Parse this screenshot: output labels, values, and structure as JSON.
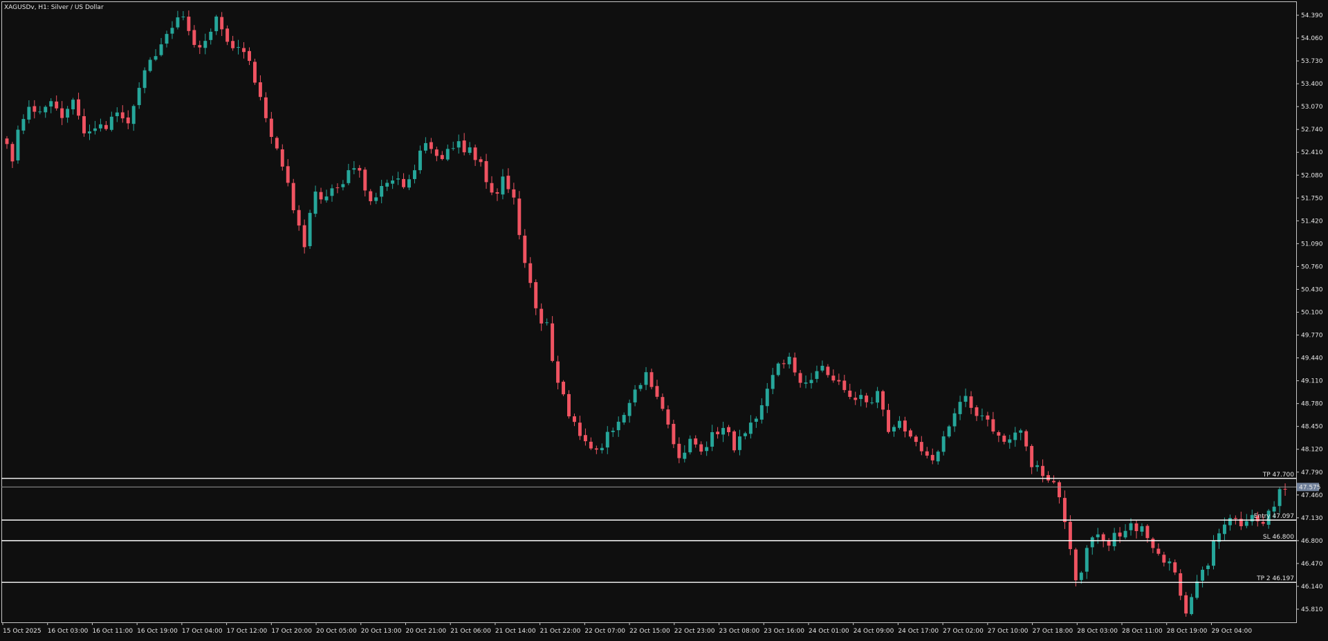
{
  "symbol_header": "XAGUSDv, H1:  Silver / US Dollar",
  "colors": {
    "background": "#0f0f0f",
    "frame": "#c8c8c8",
    "text": "#e6e6e6",
    "bull": "#26a69a",
    "bear": "#ef5361",
    "level_line": "#ffffff",
    "bid_line": "#9a9a9a",
    "bid_tag_bg": "#6f7f99"
  },
  "chart_data": {
    "type": "candlestick",
    "title": "XAGUSDv, H1:  Silver / US Dollar",
    "y_ticks": [
      "54.390",
      "54.060",
      "53.730",
      "53.400",
      "53.070",
      "52.740",
      "52.410",
      "52.080",
      "51.750",
      "51.420",
      "51.090",
      "50.760",
      "50.430",
      "50.100",
      "49.770",
      "49.440",
      "49.110",
      "48.780",
      "48.450",
      "48.120",
      "47.790",
      "47.460",
      "47.130",
      "46.800",
      "46.470",
      "46.140",
      "45.810"
    ],
    "ylim": [
      45.62,
      54.58
    ],
    "x_ticks": [
      "15 Oct 2025",
      "16 Oct 03:00",
      "16 Oct 11:00",
      "16 Oct 19:00",
      "17 Oct 04:00",
      "17 Oct 12:00",
      "17 Oct 20:00",
      "20 Oct 05:00",
      "20 Oct 13:00",
      "20 Oct 21:00",
      "21 Oct 06:00",
      "21 Oct 14:00",
      "21 Oct 22:00",
      "22 Oct 07:00",
      "22 Oct 15:00",
      "22 Oct 23:00",
      "23 Oct 08:00",
      "23 Oct 16:00",
      "24 Oct 01:00",
      "24 Oct 09:00",
      "24 Oct 17:00",
      "27 Oct 02:00",
      "27 Oct 10:00",
      "27 Oct 18:00",
      "28 Oct 03:00",
      "28 Oct 11:00",
      "28 Oct 19:00",
      "29 Oct 04:00"
    ],
    "current_bid": 47.575,
    "current_bid_label": "47.575",
    "levels": [
      {
        "label": "TP 47.700",
        "value": 47.7
      },
      {
        "label": "Entry 47.097",
        "value": 47.097
      },
      {
        "label": "SL 46.800",
        "value": 46.8
      },
      {
        "label": "TP 2 46.197",
        "value": 46.197
      }
    ],
    "grid": false,
    "close_anchors": [
      [
        0,
        52.55
      ],
      [
        1,
        52.35
      ],
      [
        2,
        52.7
      ],
      [
        4,
        53.05
      ],
      [
        6,
        53.0
      ],
      [
        8,
        53.2
      ],
      [
        10,
        52.9
      ],
      [
        12,
        53.1
      ],
      [
        14,
        52.7
      ],
      [
        16,
        52.78
      ],
      [
        18,
        52.82
      ],
      [
        20,
        52.95
      ],
      [
        22,
        52.85
      ],
      [
        24,
        53.4
      ],
      [
        26,
        53.75
      ],
      [
        28,
        53.9
      ],
      [
        30,
        54.2
      ],
      [
        32,
        54.45
      ],
      [
        34,
        53.98
      ],
      [
        36,
        54.0
      ],
      [
        38,
        54.35
      ],
      [
        40,
        54.08
      ],
      [
        42,
        53.9
      ],
      [
        44,
        53.7
      ],
      [
        46,
        53.25
      ],
      [
        48,
        52.7
      ],
      [
        50,
        52.2
      ],
      [
        52,
        51.6
      ],
      [
        54,
        51.1
      ],
      [
        56,
        51.85
      ],
      [
        58,
        51.75
      ],
      [
        60,
        51.95
      ],
      [
        62,
        52.1
      ],
      [
        64,
        52.15
      ],
      [
        66,
        51.7
      ],
      [
        68,
        51.85
      ],
      [
        70,
        52.05
      ],
      [
        72,
        51.9
      ],
      [
        74,
        52.2
      ],
      [
        76,
        52.6
      ],
      [
        78,
        52.35
      ],
      [
        80,
        52.4
      ],
      [
        82,
        52.55
      ],
      [
        84,
        52.42
      ],
      [
        86,
        52.3
      ],
      [
        88,
        51.75
      ],
      [
        90,
        52.0
      ],
      [
        92,
        51.7
      ],
      [
        94,
        50.8
      ],
      [
        96,
        50.1
      ],
      [
        98,
        49.9
      ],
      [
        100,
        49.05
      ],
      [
        102,
        48.65
      ],
      [
        104,
        48.3
      ],
      [
        106,
        48.1
      ],
      [
        108,
        48.2
      ],
      [
        110,
        48.4
      ],
      [
        112,
        48.55
      ],
      [
        114,
        49.05
      ],
      [
        116,
        49.2
      ],
      [
        118,
        48.85
      ],
      [
        120,
        48.5
      ],
      [
        122,
        47.95
      ],
      [
        124,
        48.3
      ],
      [
        126,
        48.12
      ],
      [
        128,
        48.3
      ],
      [
        130,
        48.48
      ],
      [
        132,
        48.15
      ],
      [
        134,
        48.35
      ],
      [
        136,
        48.55
      ],
      [
        138,
        49.0
      ],
      [
        140,
        49.3
      ],
      [
        142,
        49.4
      ],
      [
        144,
        49.1
      ],
      [
        146,
        49.15
      ],
      [
        148,
        49.35
      ],
      [
        150,
        49.15
      ],
      [
        152,
        49.02
      ],
      [
        154,
        48.85
      ],
      [
        156,
        48.8
      ],
      [
        158,
        48.9
      ],
      [
        160,
        48.4
      ],
      [
        162,
        48.55
      ],
      [
        164,
        48.28
      ],
      [
        166,
        48.1
      ],
      [
        168,
        48.0
      ],
      [
        170,
        48.25
      ],
      [
        172,
        48.7
      ],
      [
        174,
        48.9
      ],
      [
        176,
        48.55
      ],
      [
        178,
        48.52
      ],
      [
        180,
        48.35
      ],
      [
        182,
        48.2
      ],
      [
        184,
        48.4
      ],
      [
        186,
        47.92
      ],
      [
        188,
        47.75
      ],
      [
        190,
        47.6
      ],
      [
        192,
        47.1
      ],
      [
        194,
        46.2
      ],
      [
        196,
        46.62
      ],
      [
        198,
        46.95
      ],
      [
        200,
        46.8
      ],
      [
        202,
        46.88
      ],
      [
        204,
        46.98
      ],
      [
        206,
        46.95
      ],
      [
        208,
        46.72
      ],
      [
        210,
        46.55
      ],
      [
        212,
        46.35
      ],
      [
        214,
        45.8
      ],
      [
        216,
        46.15
      ],
      [
        218,
        46.5
      ],
      [
        220,
        46.95
      ],
      [
        222,
        47.1
      ],
      [
        224,
        47.05
      ],
      [
        226,
        47.12
      ],
      [
        228,
        47.0
      ],
      [
        230,
        47.35
      ],
      [
        232,
        47.58
      ]
    ],
    "seed": 4,
    "volatility": 0.1
  }
}
